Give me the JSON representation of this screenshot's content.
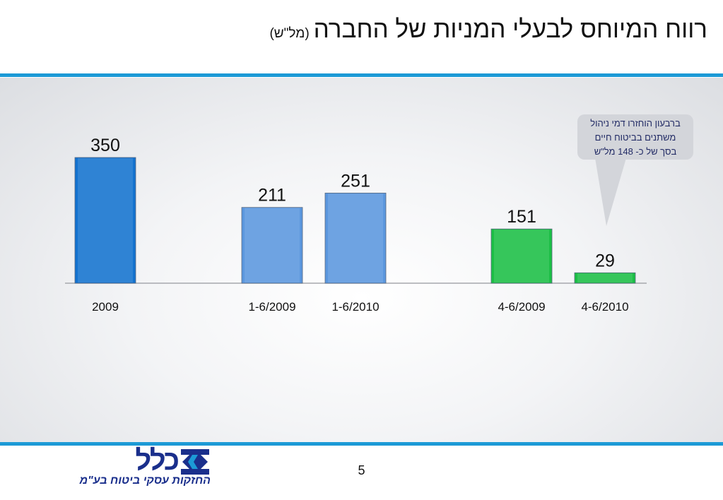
{
  "title": {
    "main": "רווח המיוחס לבעלי המניות של החברה",
    "unit": "(מל\"ש)"
  },
  "callout": {
    "lines": [
      "ברבעון הוחזרו דמי ניהול",
      "משתנים בביטוח חיים",
      "בסך של כ- 148 מל\"ש"
    ]
  },
  "page_number": "5",
  "logo": {
    "brand": "כלל",
    "tagline": "החזקות עסקי ביטוח בע\"מ"
  },
  "colors": {
    "accent_rule": "#1c9ad6",
    "bar_dark_blue": "#1372cf",
    "bar_light_blue": "#5b97de",
    "bar_green": "#1bbf45"
  },
  "chart_data": {
    "type": "bar",
    "categories": [
      "2009",
      "1-6/2009",
      "1-6/2010",
      "4-6/2009",
      "4-6/2010"
    ],
    "values": [
      350,
      211,
      251,
      151,
      29
    ],
    "data_labels": [
      "350",
      "211",
      "251",
      "151",
      "29"
    ],
    "bar_colors": [
      "#1372cf",
      "#5b97de",
      "#5b97de",
      "#1bbf45",
      "#1bbf45"
    ],
    "title": "רווח המיוחס לבעלי המניות של החברה",
    "ylim": [
      0,
      350
    ],
    "grid": false,
    "legend": "none"
  }
}
